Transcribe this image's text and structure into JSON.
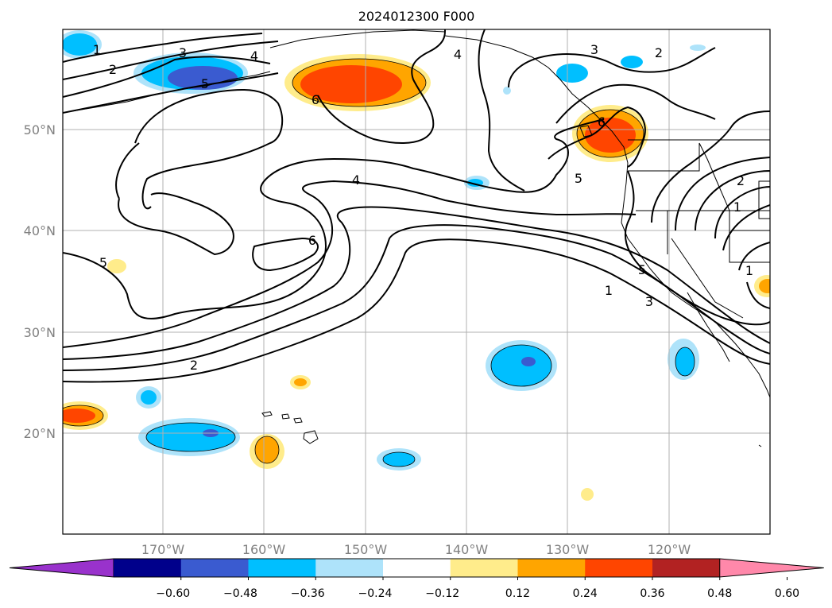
{
  "map": {
    "title": "2024012300 F000",
    "lat_labels": [
      "50°N",
      "40°N",
      "30°N",
      "20°N"
    ],
    "lon_labels": [
      "170°W",
      "160°W",
      "150°W",
      "140°W",
      "130°W",
      "120°W"
    ],
    "contour_labels": [
      "1",
      "2",
      "3",
      "4",
      "5",
      "6",
      "6",
      "4",
      "5",
      "2",
      "3",
      "4",
      "6",
      "1",
      "5",
      "3",
      "2",
      "2",
      "1",
      "5",
      "1"
    ]
  },
  "colorbar": {
    "ticks": [
      "−0.60",
      "−0.48",
      "−0.36",
      "−0.24",
      "−0.12",
      "0.12",
      "0.24",
      "0.36",
      "0.48",
      "0.60"
    ],
    "colors": [
      "#9932cc",
      "#00008b",
      "#3a5bd0",
      "#00bfff",
      "#aee3fa",
      "#ffffff",
      "#ffec8b",
      "#ffa500",
      "#ff4500",
      "#b22222",
      "#ff88aa"
    ]
  }
}
